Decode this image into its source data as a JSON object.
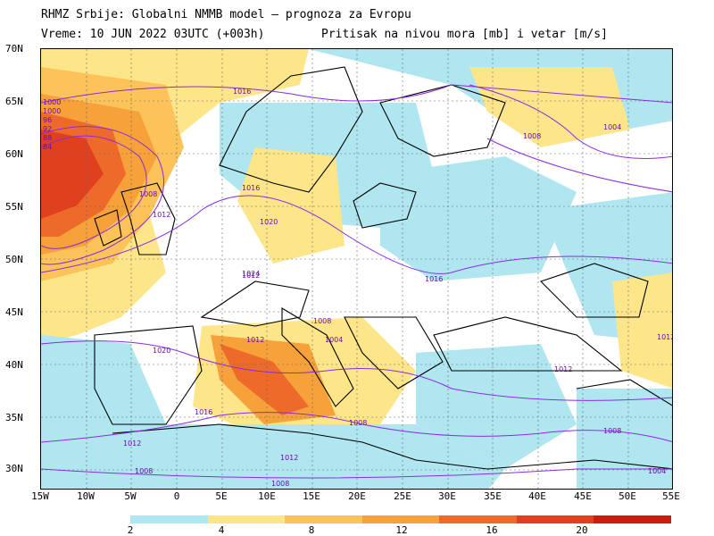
{
  "header": {
    "line1": "RHMZ Srbije: Globalni NMMB model — prognoza za Evropu",
    "line2": "Vreme: 10 JUN 2022 03UTC (+003h)",
    "line3": "Pritisak na nivou mora [mb] i vetar [m/s]"
  },
  "axes": {
    "lat_labels": [
      "70N",
      "65N",
      "60N",
      "55N",
      "50N",
      "45N",
      "40N",
      "35N",
      "30N"
    ],
    "lon_labels": [
      "15W",
      "10W",
      "5W",
      "0",
      "5E",
      "10E",
      "15E",
      "20E",
      "25E",
      "30E",
      "35E",
      "40E",
      "45E",
      "50E",
      "55E"
    ]
  },
  "isobar_labels": [
    "1016",
    "1016",
    "1008",
    "1004",
    "1008",
    "1012",
    "1012",
    "1020",
    "1024",
    "1016",
    "1020",
    "1012",
    "1008",
    "1004",
    "1012",
    "1008",
    "1016",
    "1012",
    "1012",
    "1008",
    "1008",
    "1004",
    "1000",
    "96",
    "92",
    "88",
    "84",
    "1008",
    "1012",
    "1000"
  ],
  "legend": {
    "labels": [
      "2",
      "4",
      "8",
      "12",
      "16",
      "20"
    ],
    "colors": [
      "#b0e6f0",
      "#fde68a",
      "#fbc35a",
      "#f6a13a",
      "#ee6a2a",
      "#e0401e",
      "#c81e10"
    ]
  },
  "colors": {
    "land_outline": "#000000",
    "isobar": "#8a2be2",
    "wind_low": "#b0e6f0",
    "wind_mid": "#fde68a",
    "wind_high": "#f6a13a",
    "wind_max": "#e0401e"
  }
}
